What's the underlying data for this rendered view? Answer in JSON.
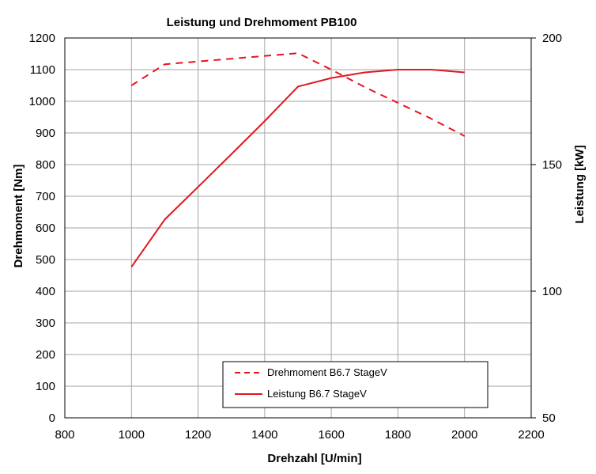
{
  "chart_data": {
    "type": "line",
    "title": "Leistung und Drehmoment PB100",
    "xlabel": "Drehzahl [U/min]",
    "ylabel": "Drehmoment [Nm]",
    "y2label": "Leistung [kW]",
    "xlim": [
      800,
      2200
    ],
    "ylim": [
      0,
      1200
    ],
    "y2lim": [
      50,
      200
    ],
    "x_ticks": [
      800,
      1000,
      1200,
      1400,
      1600,
      1800,
      2000,
      2200
    ],
    "y_ticks": [
      0,
      100,
      200,
      300,
      400,
      500,
      600,
      700,
      800,
      900,
      1000,
      1100,
      1200
    ],
    "y2_ticks": [
      50,
      100,
      150,
      200
    ],
    "grid": true,
    "legend_position": "bottom-right",
    "series": [
      {
        "name": "Drehmoment B6.7 StageV",
        "axis": "left",
        "style": "dashed",
        "color": "#e3161e",
        "x": [
          1000,
          1100,
          1500,
          1600,
          1700,
          1800,
          1900,
          2000
        ],
        "values": [
          1050,
          1117,
          1152,
          1100,
          1045,
          995,
          945,
          890
        ]
      },
      {
        "name": "Leistung B6.7 StageV",
        "axis": "right",
        "style": "solid",
        "color": "#e3161e",
        "x": [
          1000,
          1100,
          1200,
          1300,
          1400,
          1500,
          1600,
          1700,
          1800,
          1900,
          2000
        ],
        "values": [
          109.6,
          128.3,
          141.2,
          154.1,
          167.2,
          180.8,
          184.2,
          186.4,
          187.5,
          187.5,
          186.4
        ]
      }
    ]
  }
}
